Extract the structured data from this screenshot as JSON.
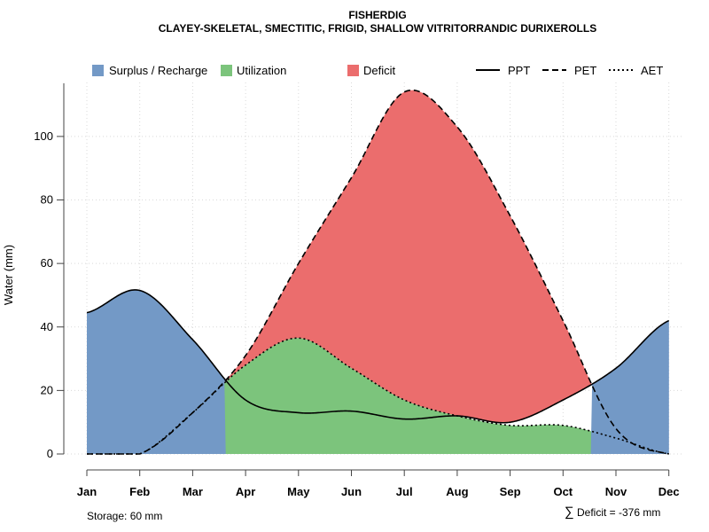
{
  "chart_data": {
    "type": "area",
    "title": "FISHERDIG",
    "subtitle": "CLAYEY-SKELETAL, SMECTITIC, FRIGID, SHALLOW VITRITORRANDIC DURIXEROLLS",
    "xlabel": "",
    "ylabel": "Water (mm)",
    "ylim": [
      0,
      117
    ],
    "yticks": [
      0,
      20,
      40,
      60,
      80,
      100
    ],
    "grid": true,
    "categories": [
      "Jan",
      "Feb",
      "Mar",
      "Apr",
      "May",
      "Jun",
      "Jul",
      "Aug",
      "Sep",
      "Oct",
      "Nov",
      "Dec"
    ],
    "series": [
      {
        "name": "PPT",
        "style": "solid",
        "values": [
          44.5,
          51.5,
          36,
          17,
          13,
          13.5,
          11,
          12,
          10,
          17,
          27,
          42
        ]
      },
      {
        "name": "PET",
        "style": "dashed",
        "values": [
          0,
          0,
          13,
          31,
          60,
          87,
          114,
          103,
          75,
          42,
          8,
          0
        ]
      },
      {
        "name": "AET",
        "style": "dotted",
        "values": [
          0,
          0,
          13,
          28,
          36.5,
          27,
          17,
          12,
          9,
          9,
          5,
          0
        ]
      }
    ],
    "areas": [
      {
        "name": "Surplus / Recharge",
        "color": "#7399C6",
        "between": [
          "PPT",
          "AET"
        ],
        "where": "PPT > PET"
      },
      {
        "name": "Utilization",
        "color": "#7CC47C",
        "between": [
          "AET",
          "PPT"
        ],
        "where": "AET > PPT"
      },
      {
        "name": "Deficit",
        "color": "#EB6D6D",
        "between": [
          "PET",
          "AET/PPT"
        ],
        "where": "PET > PPT"
      }
    ],
    "legend": {
      "placement": "top",
      "items": [
        {
          "label": "Surplus / Recharge",
          "kind": "box",
          "color": "#7399C6"
        },
        {
          "label": "Utilization",
          "kind": "box",
          "color": "#7CC47C"
        },
        {
          "label": "Deficit",
          "kind": "box",
          "color": "#EB6D6D"
        },
        {
          "label": "PPT",
          "kind": "line",
          "dash": "solid"
        },
        {
          "label": "PET",
          "kind": "line",
          "dash": "dashed"
        },
        {
          "label": "AET",
          "kind": "line",
          "dash": "dotted"
        }
      ]
    },
    "annotations": {
      "storage": "Storage: 60 mm",
      "deficit": "Deficit = -376 mm",
      "deficit_symbol": "∑"
    }
  }
}
